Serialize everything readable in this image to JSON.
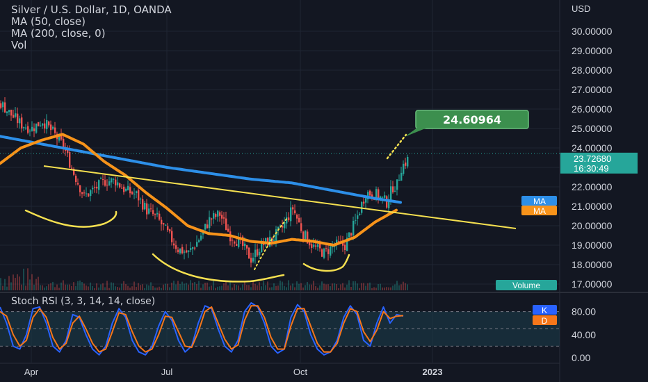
{
  "legend": {
    "title": "Silver / U.S. Dollar, 1D, OANDA",
    "ma50": "MA (50, close)",
    "ma200": "MA (200, close, 0)",
    "vol": "Vol"
  },
  "rsi_legend": "Stoch RSI (3, 3, 14, 14, close)",
  "axis_unit": "USD",
  "colors": {
    "background": "#131722",
    "grid": "#1f2633",
    "up": "#26a69a",
    "down": "#ef5350",
    "ma50": "#f7931a",
    "ma200": "#2d8fe8",
    "drawing": "#f5e050",
    "target_label": "#3c8f4e",
    "k_line": "#2962ff",
    "d_line": "#f5761a",
    "rsi_band": "#1a3a4a"
  },
  "chart_data": [
    {
      "type": "candlestick",
      "title": "Silver / U.S. Dollar, 1D, OANDA",
      "ylim": [
        16.6,
        31.0
      ],
      "y_ticks": [
        "30.00000",
        "29.00000",
        "28.00000",
        "27.00000",
        "26.00000",
        "25.00000",
        "24.00000",
        "23.00000",
        "22.00000",
        "21.00000",
        "20.00000",
        "19.00000",
        "18.00000",
        "17.00000"
      ],
      "x_ticks": [
        "Apr",
        "Jul",
        "Oct",
        "2023"
      ],
      "close_trend": [
        [
          0,
          26.3
        ],
        [
          5,
          25.7
        ],
        [
          10,
          25.2
        ],
        [
          15,
          25.0
        ],
        [
          20,
          25.4
        ],
        [
          25,
          24.8
        ],
        [
          30,
          24.1
        ],
        [
          35,
          22.7
        ],
        [
          40,
          21.5
        ],
        [
          45,
          21.9
        ],
        [
          50,
          22.3
        ],
        [
          55,
          22.3
        ],
        [
          60,
          21.8
        ],
        [
          65,
          21.6
        ],
        [
          70,
          20.8
        ],
        [
          75,
          20.4
        ],
        [
          80,
          19.6
        ],
        [
          85,
          18.8
        ],
        [
          90,
          18.6
        ],
        [
          95,
          19.3
        ],
        [
          100,
          20.3
        ],
        [
          105,
          20.6
        ],
        [
          110,
          19.5
        ],
        [
          115,
          19.1
        ],
        [
          120,
          18.3
        ],
        [
          125,
          19.0
        ],
        [
          130,
          19.3
        ],
        [
          135,
          19.9
        ],
        [
          140,
          20.9
        ],
        [
          145,
          19.6
        ],
        [
          150,
          18.9
        ],
        [
          155,
          18.6
        ],
        [
          160,
          19.0
        ],
        [
          165,
          19.0
        ],
        [
          170,
          20.2
        ],
        [
          175,
          21.7
        ],
        [
          180,
          21.6
        ],
        [
          185,
          21.2
        ],
        [
          188,
          22.0
        ],
        [
          190,
          22.1
        ],
        [
          192,
          23.0
        ],
        [
          195,
          23.4
        ]
      ],
      "ma50": [
        [
          0,
          23.2
        ],
        [
          10,
          24.0
        ],
        [
          20,
          24.4
        ],
        [
          30,
          24.7
        ],
        [
          40,
          24.2
        ],
        [
          50,
          23.3
        ],
        [
          60,
          22.6
        ],
        [
          70,
          21.7
        ],
        [
          80,
          20.9
        ],
        [
          90,
          20.0
        ],
        [
          100,
          19.6
        ],
        [
          110,
          19.5
        ],
        [
          120,
          19.2
        ],
        [
          130,
          19.1
        ],
        [
          140,
          19.3
        ],
        [
          150,
          19.2
        ],
        [
          160,
          19.0
        ],
        [
          170,
          19.4
        ],
        [
          180,
          20.2
        ],
        [
          190,
          20.8
        ]
      ],
      "ma200": [
        [
          0,
          24.6
        ],
        [
          20,
          24.2
        ],
        [
          40,
          23.8
        ],
        [
          60,
          23.4
        ],
        [
          80,
          23.0
        ],
        [
          100,
          22.7
        ],
        [
          120,
          22.4
        ],
        [
          140,
          22.2
        ],
        [
          160,
          21.8
        ],
        [
          180,
          21.4
        ],
        [
          192,
          21.2
        ]
      ],
      "annotations": {
        "target_price": "24.60964",
        "current_price": "23.72680",
        "countdown": "16:30:49",
        "ma200_label": "MA",
        "ma50_label": "MA",
        "volume_label": "Volume"
      }
    },
    {
      "type": "line",
      "title": "Stoch RSI (3, 3, 14, 14, close)",
      "ylim": [
        0,
        100
      ],
      "y_ticks": [
        "80.00",
        "40.00",
        "0.00"
      ],
      "band": [
        20,
        80
      ],
      "series": [
        {
          "name": "K",
          "values": [
            88,
            60,
            20,
            15,
            40,
            85,
            88,
            60,
            20,
            10,
            30,
            75,
            70,
            40,
            15,
            5,
            20,
            60,
            85,
            70,
            30,
            10,
            5,
            20,
            55,
            80,
            65,
            30,
            10,
            20,
            60,
            90,
            85,
            50,
            20,
            10,
            30,
            80,
            95,
            88,
            60,
            20,
            8,
            15,
            70,
            92,
            80,
            40,
            15,
            5,
            10,
            30,
            70,
            90,
            75,
            30,
            20,
            60,
            88,
            60,
            75,
            72
          ]
        },
        {
          "name": "D",
          "values": [
            80,
            72,
            40,
            20,
            30,
            70,
            85,
            70,
            35,
            15,
            25,
            60,
            72,
            50,
            25,
            10,
            15,
            45,
            78,
            75,
            45,
            20,
            10,
            15,
            40,
            72,
            70,
            45,
            20,
            18,
            45,
            80,
            88,
            60,
            32,
            15,
            22,
            65,
            90,
            90,
            70,
            35,
            15,
            15,
            55,
            85,
            85,
            55,
            25,
            10,
            10,
            25,
            60,
            85,
            80,
            45,
            28,
            48,
            80,
            68,
            72,
            73
          ]
        }
      ]
    }
  ]
}
